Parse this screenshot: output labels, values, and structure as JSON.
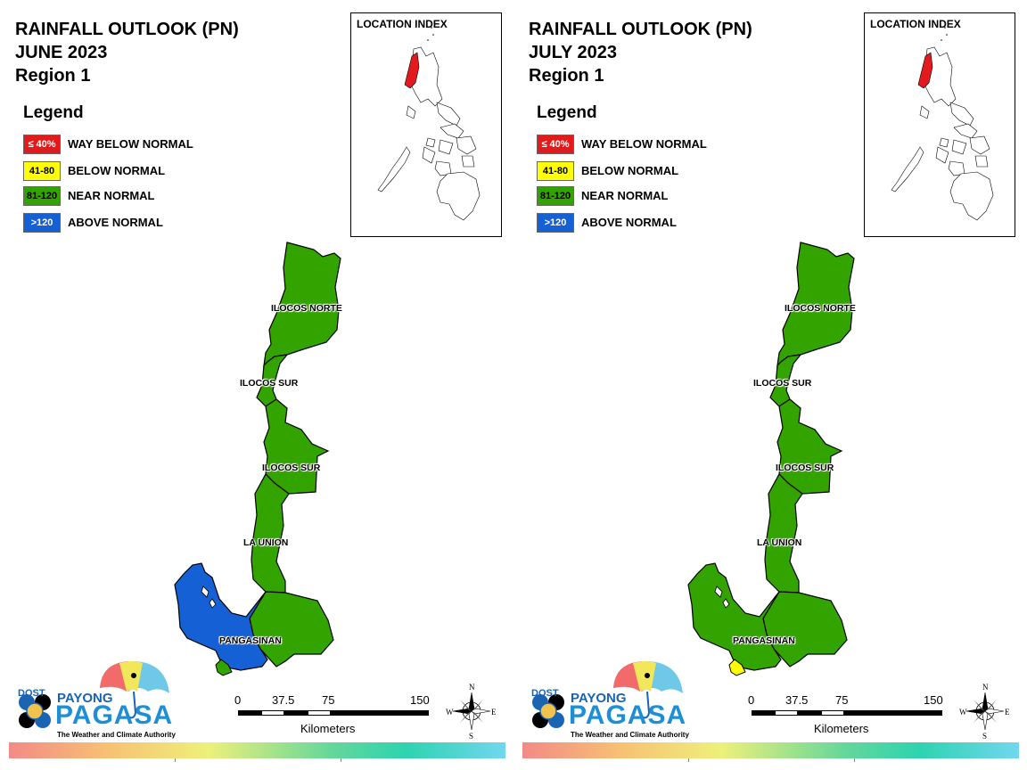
{
  "maps": [
    {
      "title_lines": [
        "RAINFALL OUTLOOK (PN)",
        "JUNE 2023",
        "Region 1"
      ],
      "legend_title": "Legend",
      "legend": [
        {
          "swatch": "≤ 40%",
          "label": "WAY BELOW NORMAL",
          "color": "#e31a1c",
          "text_color": "#ffffff"
        },
        {
          "swatch": "41-80",
          "label": "BELOW NORMAL",
          "color": "#ffff00",
          "text_color": "#000000"
        },
        {
          "swatch": "81-120",
          "label": "NEAR NORMAL",
          "color": "#33a300",
          "text_color": "#000000"
        },
        {
          "swatch": ">120",
          "label": "ABOVE NORMAL",
          "color": "#1560d4",
          "text_color": "#ffffff"
        }
      ],
      "index_title": "LOCATION INDEX",
      "province_labels": [
        "ILOCOS NORTE",
        "ILOCOS SUR",
        "ILOCOS SUR",
        "LA UNION",
        "PANGASINAN"
      ],
      "province_category": {
        "ilocos_norte": "near",
        "ilocos_sur": "near",
        "la_union": "near",
        "pangasinan_east": "near",
        "pangasinan_west": "above",
        "pangasinan_south_spot": "near"
      },
      "scale_ticks": [
        "0",
        "37.5",
        "75",
        "150"
      ],
      "scale_unit": "Kilometers",
      "compass": [
        "N",
        "S",
        "E",
        "W"
      ],
      "logo": {
        "dost": "DOST",
        "payong": "PAYONG",
        "pagasa": "PAGASA",
        "tagline": "The Weather and Climate Authority"
      }
    },
    {
      "title_lines": [
        "RAINFALL OUTLOOK (PN)",
        "JULY 2023",
        "Region 1"
      ],
      "legend_title": "Legend",
      "legend": [
        {
          "swatch": "≤ 40%",
          "label": "WAY BELOW NORMAL",
          "color": "#e31a1c",
          "text_color": "#ffffff"
        },
        {
          "swatch": "41-80",
          "label": "BELOW NORMAL",
          "color": "#ffff00",
          "text_color": "#000000"
        },
        {
          "swatch": "81-120",
          "label": "NEAR NORMAL",
          "color": "#33a300",
          "text_color": "#000000"
        },
        {
          "swatch": ">120",
          "label": "ABOVE NORMAL",
          "color": "#1560d4",
          "text_color": "#ffffff"
        }
      ],
      "index_title": "LOCATION INDEX",
      "province_labels": [
        "ILOCOS NORTE",
        "ILOCOS SUR",
        "ILOCOS SUR",
        "LA UNION",
        "PANGASINAN"
      ],
      "province_category": {
        "ilocos_norte": "near",
        "ilocos_sur": "near",
        "la_union": "near",
        "pangasinan_east": "near",
        "pangasinan_west": "near",
        "pangasinan_south_spot": "below"
      },
      "scale_ticks": [
        "0",
        "37.5",
        "75",
        "150"
      ],
      "scale_unit": "Kilometers",
      "compass": [
        "N",
        "S",
        "E",
        "W"
      ],
      "logo": {
        "dost": "DOST",
        "payong": "PAYONG",
        "pagasa": "PAGASA",
        "tagline": "The Weather and Climate Authority"
      }
    }
  ],
  "category_colors": {
    "way_below": "#e31a1c",
    "below": "#ffff00",
    "near": "#33a300",
    "above": "#1560d4"
  }
}
